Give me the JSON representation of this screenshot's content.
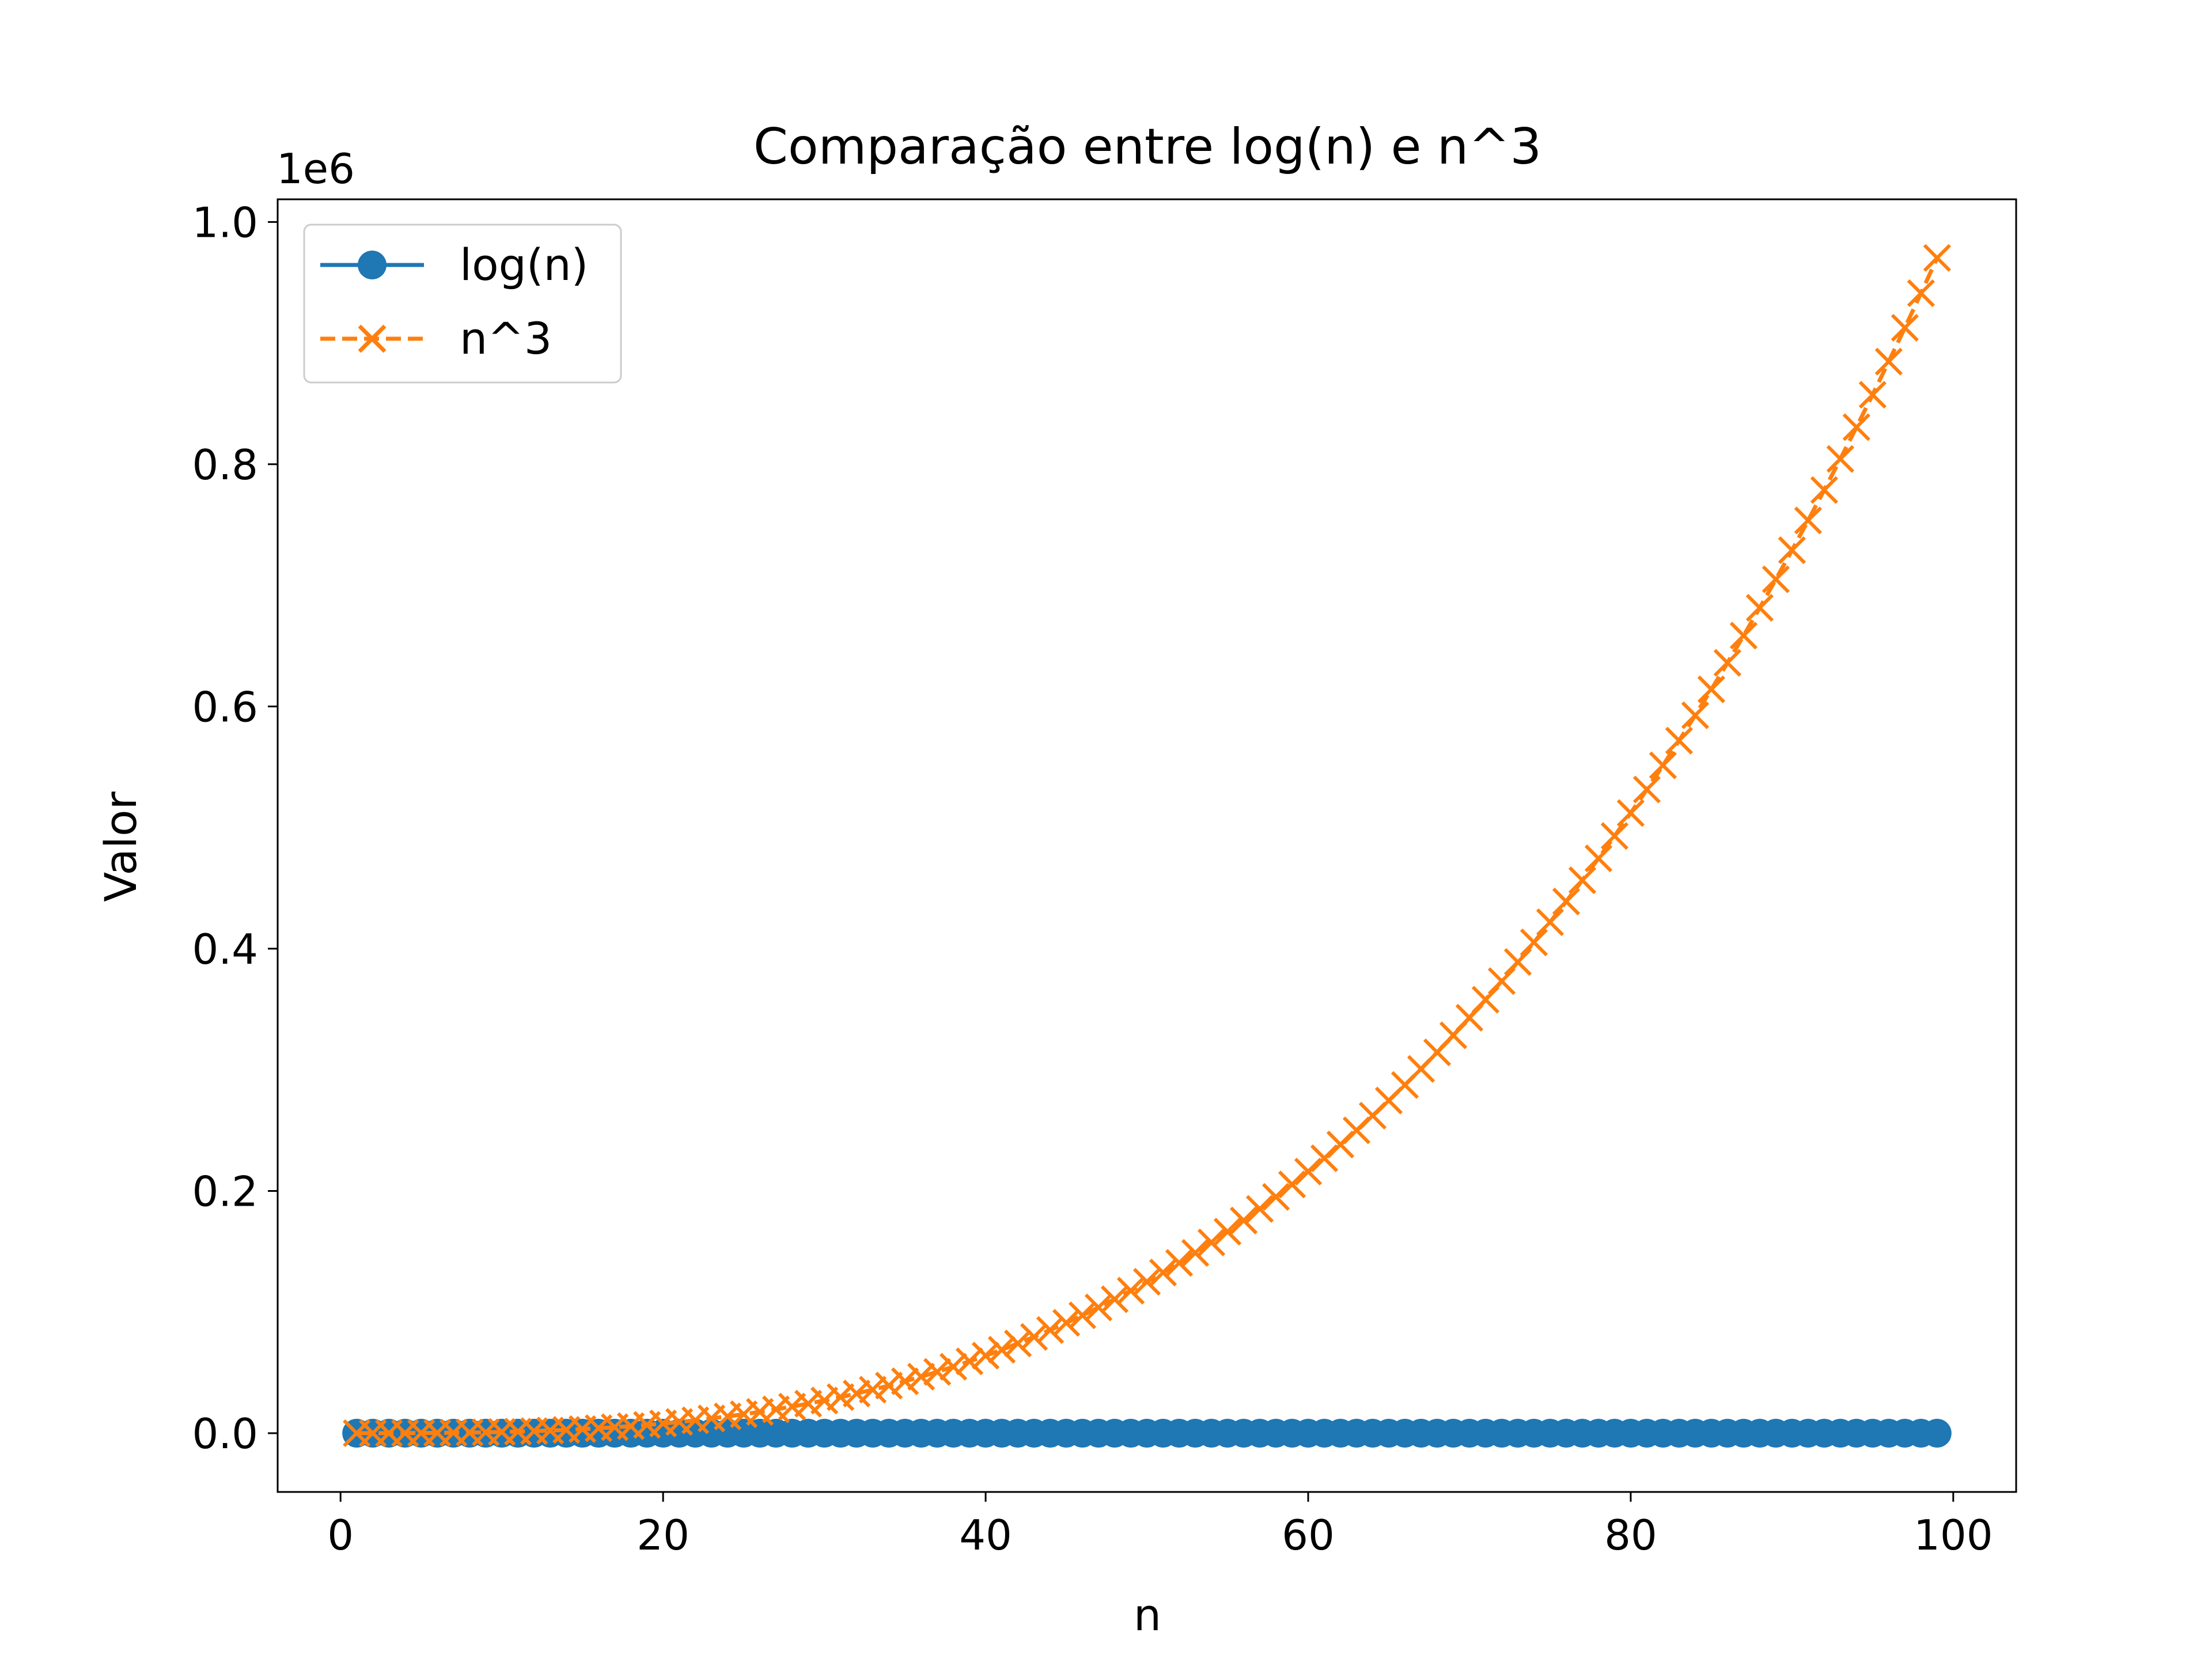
{
  "chart_data": {
    "type": "line",
    "title": "Comparação entre log(n) e n^3",
    "xlabel": "n",
    "ylabel": "Valor",
    "y_offset_label": "1e6",
    "xlim": [
      -3.9,
      103.9
    ],
    "ylim": [
      -0.04851,
      1.01871
    ],
    "y_scale_factor": 1000000,
    "x_ticks": [
      0,
      20,
      40,
      60,
      80,
      100
    ],
    "x_tick_labels": [
      "0",
      "20",
      "40",
      "60",
      "80",
      "100"
    ],
    "y_ticks": [
      0.0,
      0.2,
      0.4,
      0.6,
      0.8,
      1.0
    ],
    "y_tick_labels": [
      "0.0",
      "0.2",
      "0.4",
      "0.6",
      "0.8",
      "1.0"
    ],
    "grid": false,
    "legend_position": "upper left",
    "x": [
      1,
      2,
      3,
      4,
      5,
      6,
      7,
      8,
      9,
      10,
      11,
      12,
      13,
      14,
      15,
      16,
      17,
      18,
      19,
      20,
      21,
      22,
      23,
      24,
      25,
      26,
      27,
      28,
      29,
      30,
      31,
      32,
      33,
      34,
      35,
      36,
      37,
      38,
      39,
      40,
      41,
      42,
      43,
      44,
      45,
      46,
      47,
      48,
      49,
      50,
      51,
      52,
      53,
      54,
      55,
      56,
      57,
      58,
      59,
      60,
      61,
      62,
      63,
      64,
      65,
      66,
      67,
      68,
      69,
      70,
      71,
      72,
      73,
      74,
      75,
      76,
      77,
      78,
      79,
      80,
      81,
      82,
      83,
      84,
      85,
      86,
      87,
      88,
      89,
      90,
      91,
      92,
      93,
      94,
      95,
      96,
      97,
      98,
      99
    ],
    "series": [
      {
        "name": "log(n)",
        "color": "#1f77b4",
        "marker": "circle",
        "linestyle": "solid",
        "values": [
          0.0,
          0.693,
          1.099,
          1.386,
          1.609,
          1.792,
          1.946,
          2.079,
          2.197,
          2.303,
          2.398,
          2.485,
          2.565,
          2.639,
          2.708,
          2.773,
          2.833,
          2.89,
          2.944,
          2.996,
          3.045,
          3.091,
          3.135,
          3.178,
          3.219,
          3.258,
          3.296,
          3.332,
          3.367,
          3.401,
          3.434,
          3.466,
          3.497,
          3.526,
          3.555,
          3.584,
          3.611,
          3.638,
          3.664,
          3.689,
          3.714,
          3.738,
          3.761,
          3.784,
          3.807,
          3.829,
          3.85,
          3.871,
          3.892,
          3.912,
          3.932,
          3.951,
          3.97,
          3.989,
          4.007,
          4.025,
          4.043,
          4.06,
          4.078,
          4.094,
          4.111,
          4.127,
          4.143,
          4.159,
          4.174,
          4.19,
          4.205,
          4.22,
          4.234,
          4.248,
          4.263,
          4.277,
          4.29,
          4.304,
          4.317,
          4.331,
          4.344,
          4.357,
          4.369,
          4.382,
          4.394,
          4.407,
          4.419,
          4.431,
          4.443,
          4.454,
          4.466,
          4.477,
          4.489,
          4.5,
          4.511,
          4.522,
          4.533,
          4.543,
          4.554,
          4.564,
          4.575,
          4.585,
          4.595
        ]
      },
      {
        "name": "n^3",
        "color": "#ff7f0e",
        "marker": "x",
        "linestyle": "dashed",
        "values": [
          1,
          8,
          27,
          64,
          125,
          216,
          343,
          512,
          729,
          1000,
          1331,
          1728,
          2197,
          2744,
          3375,
          4096,
          4913,
          5832,
          6859,
          8000,
          9261,
          10648,
          12167,
          13824,
          15625,
          17576,
          19683,
          21952,
          24389,
          27000,
          29791,
          32768,
          35937,
          39304,
          42875,
          46656,
          50653,
          54872,
          59319,
          64000,
          68921,
          74088,
          79507,
          85184,
          91125,
          97336,
          103823,
          110592,
          117649,
          125000,
          132651,
          140608,
          148877,
          157464,
          166375,
          175616,
          185193,
          195112,
          205379,
          216000,
          226981,
          238328,
          250047,
          262144,
          274625,
          287496,
          300763,
          314432,
          328509,
          343000,
          357911,
          373248,
          389017,
          405224,
          421875,
          438976,
          456533,
          474552,
          493039,
          512000,
          531441,
          551368,
          571787,
          592704,
          614125,
          636056,
          658503,
          681472,
          704969,
          729000,
          753571,
          778688,
          804357,
          830584,
          857375,
          884736,
          912673,
          941192,
          970299
        ]
      }
    ]
  }
}
